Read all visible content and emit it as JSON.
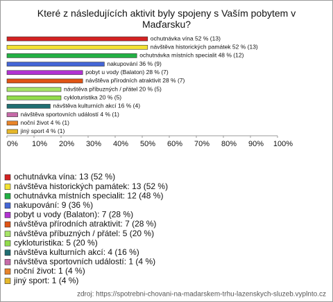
{
  "chart_data": {
    "type": "barh",
    "title": "Které z následujících aktivit byly spojeny s Vaším pobytem v Maďarsku?",
    "categories": [
      "ochutnávka vína",
      "návštěva historických památek",
      "ochutnávka místních specialit",
      "nakupování",
      "pobyt u vody (Balaton)",
      "návštěva přírodních atraktivit",
      "návštěva příbuzných / přátel",
      "cykloturistika",
      "návštěva kulturních akcí",
      "návštěva sportovních událostí",
      "noční život",
      "jiný sport"
    ],
    "values": [
      52,
      52,
      48,
      36,
      28,
      28,
      20,
      20,
      16,
      4,
      4,
      4
    ],
    "value_labels": [
      "ochutnávka vína 52 % (13)",
      "návštěva historických památek 52 % (13)",
      "ochutnávka místních specialit 48 % (12)",
      "nakupování 36 % (9)",
      "pobyt u vody (Balaton) 28 % (7)",
      "návštěva přírodních atraktivit 28 % (7)",
      "návštěva příbuzných / přátel 20 % (5)",
      "cykloturistika 20 % (5)",
      "návštěva kulturních akcí 16 % (4)",
      "návštěva sportovních událostí 4 % (1)",
      "noční život 4 % (1)",
      "jiný sport 4 % (1)"
    ],
    "legend_labels": [
      "ochutnávka vína: 13 (52 %)",
      "návštěva historických památek: 13 (52 %)",
      "ochutnávka místních specialit: 12 (48 %)",
      "nakupování: 9 (36 %)",
      "pobyt u vody (Balaton): 7 (28 %)",
      "návštěva přírodních atraktivit: 7 (28 %)",
      "návštěva příbuzných / přátel: 5 (20 %)",
      "cykloturistika: 5 (20 %)",
      "návštěva kulturních akcí: 4 (16 %)",
      "návštěva sportovních událostí: 1 (4 %)",
      "noční život: 1 (4 %)",
      "jiný sport: 1 (4 %)"
    ],
    "colors": [
      "#d42222",
      "#f2e232",
      "#22b044",
      "#4466d6",
      "#b232d2",
      "#e05414",
      "#a6e466",
      "#92dc4c",
      "#1f6e72",
      "#c66aa8",
      "#e8842a",
      "#e6b82a"
    ],
    "xlim": [
      0,
      100
    ],
    "xticks": [
      {
        "value": 0,
        "label": "0%"
      },
      {
        "value": 10,
        "label": "10%"
      },
      {
        "value": 20,
        "label": "20%"
      },
      {
        "value": 30,
        "label": "30%"
      },
      {
        "value": 40,
        "label": "40%"
      },
      {
        "value": 50,
        "label": "50%"
      },
      {
        "value": 60,
        "label": "60%"
      },
      {
        "value": 70,
        "label": "70%"
      },
      {
        "value": 80,
        "label": "80%"
      },
      {
        "value": 90,
        "label": "90%"
      },
      {
        "value": 100,
        "label": "100%"
      }
    ],
    "source": "zdroj: https://spotrebni-chovani-na-madarskem-trhu-lazenskych-sluzeb.vyplnto.cz"
  }
}
